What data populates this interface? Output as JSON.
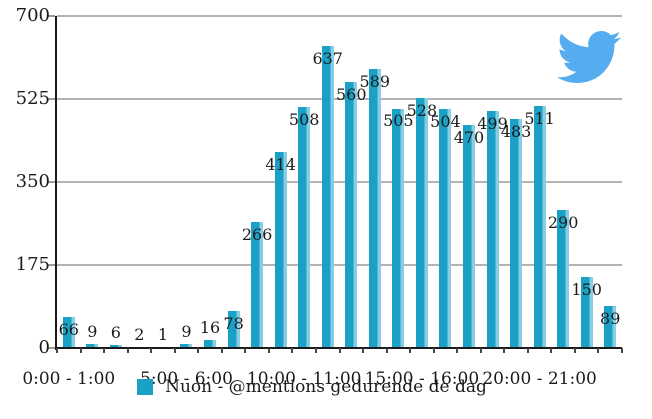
{
  "chart_data": {
    "type": "bar",
    "values": [
      66,
      9,
      6,
      2,
      1,
      9,
      16,
      78,
      266,
      414,
      508,
      637,
      560,
      589,
      505,
      528,
      504,
      470,
      499,
      483,
      511,
      290,
      150,
      89
    ],
    "x_tick_labels": [
      "0:00 - 1:00",
      "5:00 - 6:00",
      "10:00 - 11:00",
      "15:00 - 16:00",
      "20:00 - 21:00"
    ],
    "x_tick_indices": [
      0,
      5,
      10,
      15,
      20
    ],
    "y_ticks": [
      0,
      175,
      350,
      525,
      700
    ],
    "ylim": [
      0,
      700
    ],
    "grid": true,
    "legend": "Nuon - @mentions gedurende de dag",
    "legend_position": "bottom",
    "bar_color": "#1BA0C6",
    "bar_highlight_color": "#85CEE4",
    "gridline_color": "#b3b3b3",
    "axis_color": "#1a1a1a"
  },
  "icons": {
    "twitter_bird_color": "#55ACEE"
  }
}
